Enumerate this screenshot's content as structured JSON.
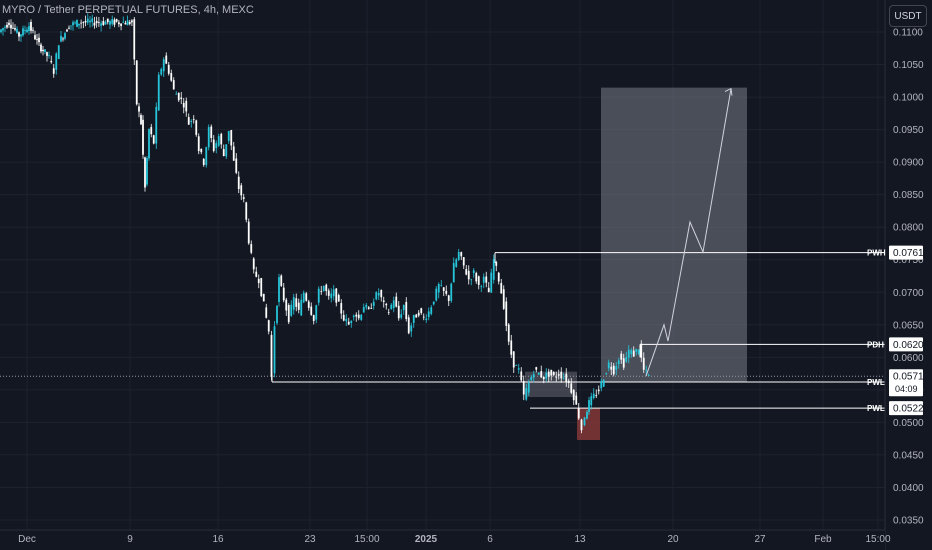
{
  "header": {
    "title": "MYRO / Tether PERPETUAL FUTURES, 4h, MEXC"
  },
  "currency_button": "USDT",
  "colors": {
    "background": "#131722",
    "up": "#26c6da",
    "down": "#ffffff",
    "box": "#787b86",
    "line": "#ffffff",
    "grid": "#1e222d",
    "axis_text": "#b2b5be",
    "red_box": "#8b3a3a"
  },
  "chart_data": {
    "type": "candlestick",
    "x": [
      "Dec",
      "9",
      "16",
      "23",
      "15:00",
      "2025",
      "6",
      "13",
      "20",
      "27",
      "Feb",
      "15:00"
    ],
    "y_ticks": [
      "0.1100",
      "0.1050",
      "0.1000",
      "0.0950",
      "0.0900",
      "0.0850",
      "0.0800",
      "0.0750",
      "0.0700",
      "0.0650",
      "0.0600",
      "0.0550",
      "0.0500",
      "0.0450",
      "0.0400",
      "0.0350"
    ],
    "ylim": [
      0.034,
      0.113
    ],
    "levels": [
      {
        "label": "PWH",
        "value": "0.0761",
        "price": 0.0761
      },
      {
        "label": "PDH",
        "value": "0.0620",
        "price": 0.062
      },
      {
        "label": "PWL",
        "value": "0.0562",
        "price": 0.0562
      },
      {
        "label": "PWL",
        "value": "0.0522",
        "price": 0.0522
      }
    ],
    "current_price": {
      "value": "0.0571",
      "price": 0.0571,
      "countdown": "04:09"
    },
    "projection": {
      "target": 0.1013
    },
    "price_path": [
      [
        0,
        0.11
      ],
      [
        10,
        0.1115
      ],
      [
        20,
        0.1095
      ],
      [
        30,
        0.111
      ],
      [
        40,
        0.108
      ],
      [
        50,
        0.106
      ],
      [
        55,
        0.104
      ],
      [
        60,
        0.1085
      ],
      [
        70,
        0.111
      ],
      [
        80,
        0.1115
      ],
      [
        100,
        0.1115
      ],
      [
        120,
        0.1115
      ],
      [
        133,
        0.1115
      ],
      [
        138,
        0.099
      ],
      [
        142,
        0.096
      ],
      [
        146,
        0.086
      ],
      [
        150,
        0.095
      ],
      [
        155,
        0.093
      ],
      [
        160,
        0.103
      ],
      [
        165,
        0.106
      ],
      [
        170,
        0.104
      ],
      [
        175,
        0.101
      ],
      [
        180,
        0.1
      ],
      [
        185,
        0.099
      ],
      [
        190,
        0.096
      ],
      [
        195,
        0.097
      ],
      [
        200,
        0.092
      ],
      [
        205,
        0.09
      ],
      [
        210,
        0.095
      ],
      [
        215,
        0.092
      ],
      [
        220,
        0.094
      ],
      [
        225,
        0.091
      ],
      [
        230,
        0.095
      ],
      [
        235,
        0.09
      ],
      [
        240,
        0.086
      ],
      [
        245,
        0.084
      ],
      [
        250,
        0.078
      ],
      [
        255,
        0.073
      ],
      [
        260,
        0.072
      ],
      [
        265,
        0.068
      ],
      [
        270,
        0.064
      ],
      [
        273,
        0.057
      ],
      [
        276,
        0.065
      ],
      [
        280,
        0.072
      ],
      [
        285,
        0.069
      ],
      [
        290,
        0.066
      ],
      [
        295,
        0.069
      ],
      [
        300,
        0.067
      ],
      [
        305,
        0.07
      ],
      [
        310,
        0.068
      ],
      [
        315,
        0.066
      ],
      [
        320,
        0.07
      ],
      [
        325,
        0.071
      ],
      [
        330,
        0.069
      ],
      [
        335,
        0.07
      ],
      [
        340,
        0.068
      ],
      [
        345,
        0.066
      ],
      [
        350,
        0.065
      ],
      [
        355,
        0.067
      ],
      [
        360,
        0.066
      ],
      [
        365,
        0.068
      ],
      [
        370,
        0.067
      ],
      [
        375,
        0.069
      ],
      [
        380,
        0.07
      ],
      [
        385,
        0.068
      ],
      [
        390,
        0.067
      ],
      [
        395,
        0.069
      ],
      [
        400,
        0.066
      ],
      [
        405,
        0.068
      ],
      [
        410,
        0.064
      ],
      [
        415,
        0.066
      ],
      [
        420,
        0.067
      ],
      [
        425,
        0.066
      ],
      [
        430,
        0.067
      ],
      [
        435,
        0.069
      ],
      [
        440,
        0.071
      ],
      [
        445,
        0.07
      ],
      [
        450,
        0.069
      ],
      [
        455,
        0.074
      ],
      [
        460,
        0.076
      ],
      [
        465,
        0.074
      ],
      [
        470,
        0.072
      ],
      [
        475,
        0.073
      ],
      [
        480,
        0.071
      ],
      [
        485,
        0.072
      ],
      [
        490,
        0.07
      ],
      [
        495,
        0.075
      ],
      [
        500,
        0.072
      ],
      [
        505,
        0.068
      ],
      [
        510,
        0.062
      ],
      [
        515,
        0.059
      ],
      [
        520,
        0.058
      ],
      [
        525,
        0.054
      ],
      [
        530,
        0.056
      ],
      [
        535,
        0.058
      ],
      [
        540,
        0.0575
      ],
      [
        545,
        0.057
      ],
      [
        550,
        0.0575
      ],
      [
        555,
        0.057
      ],
      [
        560,
        0.0575
      ],
      [
        565,
        0.057
      ],
      [
        570,
        0.056
      ],
      [
        575,
        0.054
      ],
      [
        580,
        0.051
      ],
      [
        583,
        0.049
      ],
      [
        586,
        0.051
      ],
      [
        590,
        0.053
      ],
      [
        595,
        0.054
      ],
      [
        600,
        0.055
      ],
      [
        605,
        0.057
      ],
      [
        610,
        0.059
      ],
      [
        615,
        0.058
      ],
      [
        620,
        0.06
      ],
      [
        625,
        0.059
      ],
      [
        630,
        0.061
      ],
      [
        635,
        0.0605
      ],
      [
        640,
        0.0615
      ],
      [
        645,
        0.058
      ],
      [
        650,
        0.0571
      ]
    ]
  }
}
